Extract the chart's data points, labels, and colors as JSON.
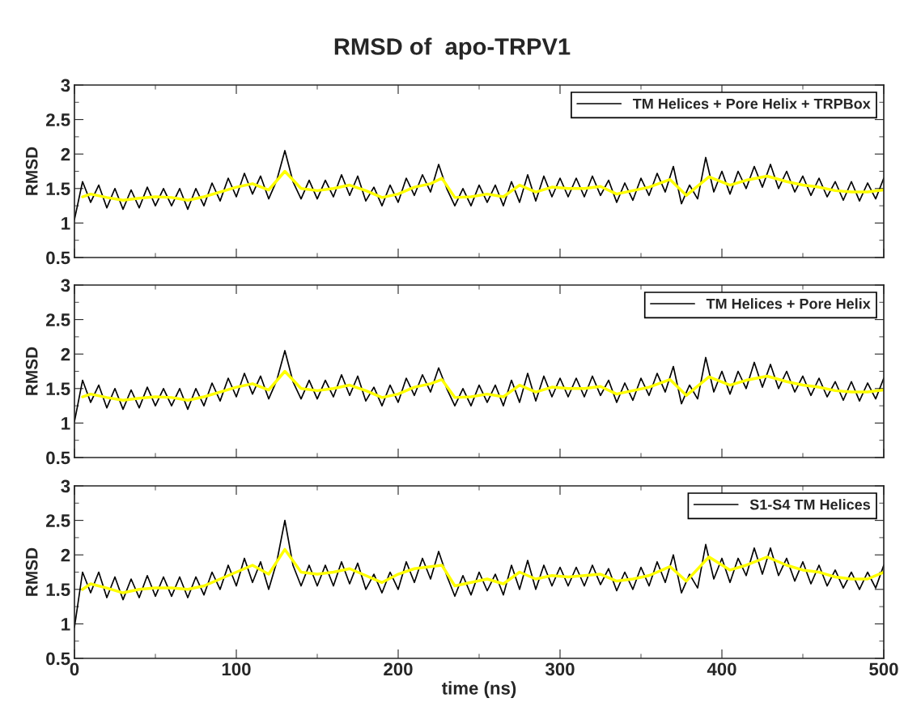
{
  "chart_data": [
    {
      "type": "line",
      "title": "RMSD of  apo-TRPV1",
      "ylabel": "RMSD",
      "xlim": [
        0,
        500
      ],
      "xticks": [
        0,
        100,
        200,
        300,
        400,
        500
      ],
      "ylim": [
        0.5,
        3
      ],
      "yticks": [
        0.5,
        1,
        1.5,
        2,
        2.5,
        3
      ],
      "tick_labels": "y",
      "legend": "top right",
      "grid": false,
      "x": [
        0,
        5,
        10,
        15,
        20,
        25,
        30,
        35,
        40,
        45,
        50,
        55,
        60,
        65,
        70,
        75,
        80,
        85,
        90,
        95,
        100,
        105,
        110,
        115,
        120,
        125,
        130,
        135,
        140,
        145,
        150,
        155,
        160,
        165,
        170,
        175,
        180,
        185,
        190,
        195,
        200,
        205,
        210,
        215,
        220,
        225,
        230,
        235,
        240,
        245,
        250,
        255,
        260,
        265,
        270,
        275,
        280,
        285,
        290,
        295,
        300,
        305,
        310,
        315,
        320,
        325,
        330,
        335,
        340,
        345,
        350,
        355,
        360,
        365,
        370,
        375,
        380,
        385,
        390,
        395,
        400,
        405,
        410,
        415,
        420,
        425,
        430,
        435,
        440,
        445,
        450,
        455,
        460,
        465,
        470,
        475,
        480,
        485,
        490,
        495,
        500
      ],
      "series": [
        {
          "name": "TM Helices + Pore Helix + TRPBox",
          "color": "#000000",
          "values": [
            1.05,
            1.6,
            1.3,
            1.55,
            1.22,
            1.5,
            1.2,
            1.48,
            1.22,
            1.52,
            1.25,
            1.5,
            1.25,
            1.5,
            1.2,
            1.5,
            1.25,
            1.58,
            1.32,
            1.65,
            1.38,
            1.72,
            1.42,
            1.68,
            1.35,
            1.62,
            2.05,
            1.6,
            1.35,
            1.62,
            1.35,
            1.62,
            1.38,
            1.7,
            1.4,
            1.68,
            1.32,
            1.52,
            1.25,
            1.55,
            1.3,
            1.65,
            1.4,
            1.7,
            1.45,
            1.85,
            1.5,
            1.25,
            1.5,
            1.25,
            1.55,
            1.3,
            1.55,
            1.25,
            1.6,
            1.3,
            1.7,
            1.32,
            1.68,
            1.38,
            1.65,
            1.38,
            1.65,
            1.38,
            1.68,
            1.4,
            1.62,
            1.3,
            1.58,
            1.33,
            1.65,
            1.4,
            1.72,
            1.45,
            1.82,
            1.28,
            1.55,
            1.35,
            1.95,
            1.45,
            1.75,
            1.42,
            1.75,
            1.5,
            1.82,
            1.52,
            1.85,
            1.5,
            1.75,
            1.45,
            1.68,
            1.4,
            1.65,
            1.38,
            1.6,
            1.33,
            1.6,
            1.32,
            1.58,
            1.35,
            1.65
          ]
        },
        {
          "color": "#ffff00",
          "x": [
            5,
            10,
            20,
            30,
            40,
            50,
            60,
            70,
            80,
            90,
            100,
            110,
            120,
            130,
            140,
            150,
            160,
            170,
            180,
            190,
            200,
            210,
            220,
            227,
            235,
            245,
            255,
            265,
            275,
            285,
            295,
            305,
            315,
            325,
            335,
            345,
            355,
            368,
            378,
            392,
            405,
            415,
            428,
            440,
            450,
            460,
            470,
            480,
            490,
            500
          ],
          "values": [
            1.38,
            1.42,
            1.37,
            1.33,
            1.36,
            1.38,
            1.37,
            1.33,
            1.38,
            1.45,
            1.52,
            1.57,
            1.48,
            1.75,
            1.5,
            1.47,
            1.5,
            1.55,
            1.47,
            1.37,
            1.42,
            1.52,
            1.57,
            1.65,
            1.37,
            1.38,
            1.42,
            1.38,
            1.55,
            1.45,
            1.52,
            1.5,
            1.5,
            1.53,
            1.42,
            1.47,
            1.52,
            1.63,
            1.4,
            1.67,
            1.55,
            1.62,
            1.68,
            1.6,
            1.55,
            1.52,
            1.47,
            1.45,
            1.45,
            1.48
          ]
        }
      ]
    },
    {
      "type": "line",
      "ylabel": "RMSD",
      "xlim": [
        0,
        500
      ],
      "xticks": [
        0,
        100,
        200,
        300,
        400,
        500
      ],
      "ylim": [
        0.5,
        3
      ],
      "yticks": [
        0.5,
        1,
        1.5,
        2,
        2.5,
        3
      ],
      "tick_labels": "y",
      "legend": "top right",
      "grid": false,
      "x": [
        0,
        5,
        10,
        15,
        20,
        25,
        30,
        35,
        40,
        45,
        50,
        55,
        60,
        65,
        70,
        75,
        80,
        85,
        90,
        95,
        100,
        105,
        110,
        115,
        120,
        125,
        130,
        135,
        140,
        145,
        150,
        155,
        160,
        165,
        170,
        175,
        180,
        185,
        190,
        195,
        200,
        205,
        210,
        215,
        220,
        225,
        230,
        235,
        240,
        245,
        250,
        255,
        260,
        265,
        270,
        275,
        280,
        285,
        290,
        295,
        300,
        305,
        310,
        315,
        320,
        325,
        330,
        335,
        340,
        345,
        350,
        355,
        360,
        365,
        370,
        375,
        380,
        385,
        390,
        395,
        400,
        405,
        410,
        415,
        420,
        425,
        430,
        435,
        440,
        445,
        450,
        455,
        460,
        465,
        470,
        475,
        480,
        485,
        490,
        495,
        500
      ],
      "series": [
        {
          "name": "TM Helices + Pore Helix",
          "color": "#000000",
          "values": [
            1.02,
            1.62,
            1.3,
            1.55,
            1.22,
            1.5,
            1.2,
            1.48,
            1.22,
            1.52,
            1.25,
            1.5,
            1.25,
            1.5,
            1.2,
            1.5,
            1.25,
            1.58,
            1.32,
            1.65,
            1.38,
            1.72,
            1.42,
            1.68,
            1.35,
            1.62,
            2.05,
            1.6,
            1.35,
            1.62,
            1.35,
            1.62,
            1.38,
            1.7,
            1.4,
            1.68,
            1.32,
            1.52,
            1.25,
            1.55,
            1.3,
            1.65,
            1.4,
            1.7,
            1.45,
            1.8,
            1.5,
            1.25,
            1.5,
            1.25,
            1.55,
            1.3,
            1.55,
            1.25,
            1.62,
            1.3,
            1.72,
            1.32,
            1.68,
            1.38,
            1.65,
            1.38,
            1.65,
            1.38,
            1.68,
            1.4,
            1.62,
            1.3,
            1.58,
            1.33,
            1.65,
            1.4,
            1.72,
            1.45,
            1.82,
            1.28,
            1.55,
            1.35,
            1.95,
            1.45,
            1.75,
            1.42,
            1.75,
            1.5,
            1.88,
            1.52,
            1.85,
            1.5,
            1.75,
            1.45,
            1.68,
            1.4,
            1.65,
            1.38,
            1.6,
            1.33,
            1.6,
            1.32,
            1.58,
            1.35,
            1.65
          ]
        },
        {
          "color": "#ffff00",
          "x": [
            5,
            10,
            20,
            30,
            40,
            50,
            60,
            70,
            80,
            90,
            100,
            110,
            120,
            130,
            140,
            150,
            160,
            170,
            180,
            190,
            200,
            210,
            220,
            227,
            235,
            245,
            255,
            265,
            275,
            285,
            295,
            305,
            315,
            325,
            335,
            345,
            355,
            368,
            378,
            392,
            405,
            415,
            428,
            440,
            450,
            460,
            470,
            480,
            490,
            500
          ],
          "values": [
            1.38,
            1.42,
            1.37,
            1.33,
            1.36,
            1.38,
            1.37,
            1.33,
            1.38,
            1.45,
            1.52,
            1.57,
            1.48,
            1.75,
            1.5,
            1.47,
            1.5,
            1.55,
            1.47,
            1.37,
            1.42,
            1.52,
            1.57,
            1.63,
            1.37,
            1.38,
            1.42,
            1.38,
            1.55,
            1.45,
            1.52,
            1.5,
            1.5,
            1.53,
            1.42,
            1.47,
            1.52,
            1.63,
            1.4,
            1.67,
            1.55,
            1.62,
            1.68,
            1.6,
            1.55,
            1.52,
            1.47,
            1.45,
            1.45,
            1.48
          ]
        }
      ]
    },
    {
      "type": "line",
      "ylabel": "RMSD",
      "xlabel": "time (ns)",
      "xlim": [
        0,
        500
      ],
      "xticks": [
        0,
        100,
        200,
        300,
        400,
        500
      ],
      "ylim": [
        0.5,
        3
      ],
      "yticks": [
        0.5,
        1,
        1.5,
        2,
        2.5,
        3
      ],
      "legend": "top right",
      "grid": false,
      "x": [
        0,
        5,
        10,
        15,
        20,
        25,
        30,
        35,
        40,
        45,
        50,
        55,
        60,
        65,
        70,
        75,
        80,
        85,
        90,
        95,
        100,
        105,
        110,
        115,
        120,
        125,
        130,
        135,
        140,
        145,
        150,
        155,
        160,
        165,
        170,
        175,
        180,
        185,
        190,
        195,
        200,
        205,
        210,
        215,
        220,
        225,
        230,
        235,
        240,
        245,
        250,
        255,
        260,
        265,
        270,
        275,
        280,
        285,
        290,
        295,
        300,
        305,
        310,
        315,
        320,
        325,
        330,
        335,
        340,
        345,
        350,
        355,
        360,
        365,
        370,
        375,
        380,
        385,
        390,
        395,
        400,
        405,
        410,
        415,
        420,
        425,
        430,
        435,
        440,
        445,
        450,
        455,
        460,
        465,
        470,
        475,
        480,
        485,
        490,
        495,
        500
      ],
      "series": [
        {
          "name": "S1-S4 TM Helices",
          "color": "#000000",
          "values": [
            0.95,
            1.75,
            1.45,
            1.75,
            1.38,
            1.68,
            1.35,
            1.65,
            1.38,
            1.7,
            1.4,
            1.68,
            1.4,
            1.68,
            1.38,
            1.68,
            1.42,
            1.75,
            1.5,
            1.85,
            1.55,
            1.95,
            1.6,
            1.9,
            1.5,
            1.9,
            2.5,
            1.85,
            1.55,
            1.85,
            1.55,
            1.85,
            1.55,
            1.9,
            1.58,
            1.88,
            1.5,
            1.72,
            1.45,
            1.75,
            1.5,
            1.9,
            1.6,
            1.95,
            1.65,
            2.05,
            1.7,
            1.4,
            1.7,
            1.42,
            1.75,
            1.48,
            1.72,
            1.42,
            1.85,
            1.5,
            1.92,
            1.5,
            1.85,
            1.55,
            1.82,
            1.55,
            1.82,
            1.55,
            1.85,
            1.57,
            1.8,
            1.48,
            1.75,
            1.5,
            1.82,
            1.55,
            1.9,
            1.6,
            2.0,
            1.45,
            1.72,
            1.52,
            2.15,
            1.65,
            1.95,
            1.6,
            1.95,
            1.7,
            2.1,
            1.72,
            2.1,
            1.7,
            1.95,
            1.62,
            1.9,
            1.58,
            1.85,
            1.55,
            1.78,
            1.52,
            1.75,
            1.5,
            1.75,
            1.52,
            1.85
          ]
        },
        {
          "color": "#ffff00",
          "x": [
            5,
            10,
            20,
            30,
            40,
            50,
            60,
            70,
            80,
            90,
            100,
            110,
            120,
            130,
            140,
            150,
            160,
            170,
            180,
            190,
            200,
            210,
            220,
            227,
            235,
            245,
            255,
            265,
            275,
            285,
            295,
            305,
            315,
            325,
            335,
            345,
            355,
            368,
            378,
            392,
            405,
            415,
            428,
            440,
            450,
            460,
            470,
            480,
            490,
            500
          ],
          "values": [
            1.5,
            1.58,
            1.52,
            1.45,
            1.5,
            1.52,
            1.52,
            1.5,
            1.55,
            1.65,
            1.75,
            1.85,
            1.72,
            2.08,
            1.75,
            1.72,
            1.75,
            1.8,
            1.7,
            1.6,
            1.72,
            1.8,
            1.83,
            1.85,
            1.55,
            1.6,
            1.65,
            1.58,
            1.75,
            1.65,
            1.7,
            1.68,
            1.7,
            1.72,
            1.62,
            1.65,
            1.7,
            1.83,
            1.62,
            1.97,
            1.78,
            1.85,
            1.97,
            1.85,
            1.78,
            1.75,
            1.68,
            1.65,
            1.65,
            1.75
          ]
        }
      ]
    }
  ]
}
